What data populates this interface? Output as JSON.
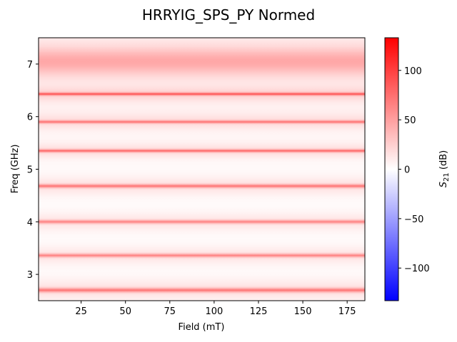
{
  "chart_data": {
    "type": "heatmap",
    "title": "HRRYIG_SPS_PY Normed",
    "xlabel": "Field (mT)",
    "ylabel": "Freq (GHz)",
    "colorbar_label": "S21 (dB)",
    "colorbar_label_main": "S",
    "colorbar_label_sub": "21",
    "colorbar_label_unit": " (dB)",
    "xlim": [
      1,
      185
    ],
    "ylim": [
      2.5,
      7.5
    ],
    "x_ticks": [
      25,
      50,
      75,
      100,
      125,
      150,
      175
    ],
    "x_tick_labels": [
      "25",
      "50",
      "75",
      "100",
      "125",
      "150",
      "175"
    ],
    "y_ticks": [
      3,
      4,
      5,
      6,
      7
    ],
    "y_tick_labels": [
      "3",
      "4",
      "5",
      "6",
      "7"
    ],
    "colorbar_range": [
      -133,
      133
    ],
    "colorbar_ticks": [
      -100,
      -50,
      0,
      50,
      100
    ],
    "colorbar_tick_labels": [
      "−100",
      "−50",
      "0",
      "50",
      "100"
    ],
    "colormap": [
      "#0000ff",
      "#ffffff",
      "#ff0000"
    ],
    "background_level_db": 2,
    "resonances": [
      {
        "freq_ghz": 2.7,
        "width_ghz": 0.03,
        "peak_db": 50
      },
      {
        "freq_ghz": 3.36,
        "width_ghz": 0.025,
        "peak_db": 45
      },
      {
        "freq_ghz": 4.0,
        "width_ghz": 0.025,
        "peak_db": 45
      },
      {
        "freq_ghz": 4.68,
        "width_ghz": 0.025,
        "peak_db": 50
      },
      {
        "freq_ghz": 5.35,
        "width_ghz": 0.02,
        "peak_db": 55
      },
      {
        "freq_ghz": 5.9,
        "width_ghz": 0.02,
        "peak_db": 50
      },
      {
        "freq_ghz": 6.43,
        "width_ghz": 0.018,
        "peak_db": 60
      },
      {
        "freq_ghz": 7.05,
        "width_ghz": 0.18,
        "peak_db": 35
      }
    ]
  }
}
